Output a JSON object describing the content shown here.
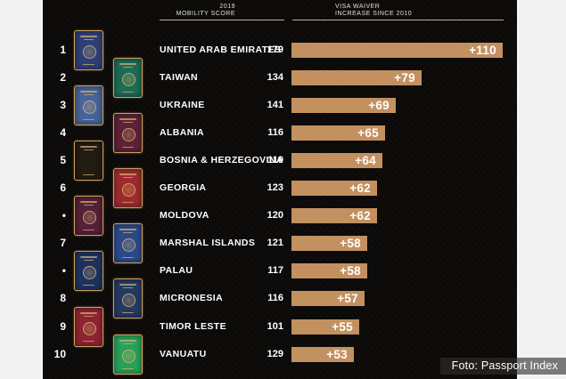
{
  "header": {
    "score_col_line1": "2019",
    "score_col_line2": "MOBILITY SCORE",
    "bar_col_line1": "VISA WAIVER",
    "bar_col_line2": "INCREASE SINCE 2010"
  },
  "caption": "Foto: Passport Index",
  "colors": {
    "bar": "#c39060",
    "panel_bg": "#0c0a08",
    "page_bg": "#f3f3f3",
    "text": "#ffffff",
    "passport_border_gold": "#c9a05f"
  },
  "rows": [
    {
      "rank": "1",
      "country": "UNITED ARAB EMIRATES",
      "score": "179",
      "bar_label": "+110",
      "bar_value": 110,
      "passport_color": "#2e3f78",
      "passport_column": "left",
      "passport_detail": "emblem"
    },
    {
      "rank": "2",
      "country": "TAIWAN",
      "score": "134",
      "bar_label": "+79",
      "bar_value": 79,
      "passport_color": "#1c6b55",
      "passport_column": "right",
      "passport_detail": "emblem"
    },
    {
      "rank": "3",
      "country": "UKRAINE",
      "score": "141",
      "bar_label": "+69",
      "bar_value": 69,
      "passport_color": "#46639c",
      "passport_column": "left",
      "passport_detail": "emblem"
    },
    {
      "rank": "4",
      "country": "ALBANIA",
      "score": "116",
      "bar_label": "+65",
      "bar_value": 65,
      "passport_color": "#5e2136",
      "passport_column": "right",
      "passport_detail": "emblem"
    },
    {
      "rank": "5",
      "country": "BOSNIA & HERZEGOVINA",
      "score": "119",
      "bar_label": "+64",
      "bar_value": 64,
      "passport_color": "#221b12",
      "passport_column": "left",
      "passport_detail": "stripes"
    },
    {
      "rank": "6",
      "country": "GEORGIA",
      "score": "123",
      "bar_label": "+62",
      "bar_value": 62,
      "passport_color": "#9c2b2e",
      "passport_column": "right",
      "passport_detail": "emblem"
    },
    {
      "rank": "•",
      "country": "MOLDOVA",
      "score": "120",
      "bar_label": "+62",
      "bar_value": 62,
      "passport_color": "#55203a",
      "passport_column": "left",
      "passport_detail": "emblem"
    },
    {
      "rank": "7",
      "country": "MARSHAL ISLANDS",
      "score": "121",
      "bar_label": "+58",
      "bar_value": 58,
      "passport_color": "#2a4a8a",
      "passport_column": "right",
      "passport_detail": "emblem"
    },
    {
      "rank": "•",
      "country": "PALAU",
      "score": "117",
      "bar_label": "+58",
      "bar_value": 58,
      "passport_color": "#1d3260",
      "passport_column": "left",
      "passport_detail": "emblem"
    },
    {
      "rank": "8",
      "country": "MICRONESIA",
      "score": "116",
      "bar_label": "+57",
      "bar_value": 57,
      "passport_color": "#243a63",
      "passport_column": "right",
      "passport_detail": "emblem"
    },
    {
      "rank": "9",
      "country": "TIMOR LESTE",
      "score": "101",
      "bar_label": "+55",
      "bar_value": 55,
      "passport_color": "#8e2333",
      "passport_column": "left",
      "passport_detail": "emblem"
    },
    {
      "rank": "10",
      "country": "VANUATU",
      "score": "129",
      "bar_label": "+53",
      "bar_value": 53,
      "passport_color": "#2aa05a",
      "passport_column": "right",
      "passport_detail": "emblem"
    }
  ],
  "chart_data": {
    "type": "bar",
    "orientation": "horizontal",
    "title": "",
    "column_headers": [
      "2019 MOBILITY SCORE",
      "VISA WAIVER INCREASE SINCE 2010"
    ],
    "categories": [
      "UNITED ARAB EMIRATES",
      "TAIWAN",
      "UKRAINE",
      "ALBANIA",
      "BOSNIA & HERZEGOVINA",
      "GEORGIA",
      "MOLDOVA",
      "MARSHAL ISLANDS",
      "PALAU",
      "MICRONESIA",
      "TIMOR LESTE",
      "VANUATU"
    ],
    "ranks": [
      "1",
      "2",
      "3",
      "4",
      "5",
      "6",
      "•",
      "7",
      "•",
      "8",
      "9",
      "10"
    ],
    "series": [
      {
        "name": "2019 Mobility Score",
        "values": [
          179,
          134,
          141,
          116,
          119,
          123,
          120,
          121,
          117,
          116,
          101,
          129
        ]
      },
      {
        "name": "Visa Waiver Increase Since 2010",
        "values": [
          110,
          79,
          69,
          65,
          64,
          62,
          62,
          58,
          58,
          57,
          55,
          53
        ]
      }
    ],
    "bar_color": "#c39060",
    "bar_labels": [
      "+110",
      "+79",
      "+69",
      "+65",
      "+64",
      "+62",
      "+62",
      "+58",
      "+58",
      "+57",
      "+55",
      "+53"
    ],
    "legend": "none",
    "grid": "off",
    "source_caption": "Foto: Passport Index"
  }
}
